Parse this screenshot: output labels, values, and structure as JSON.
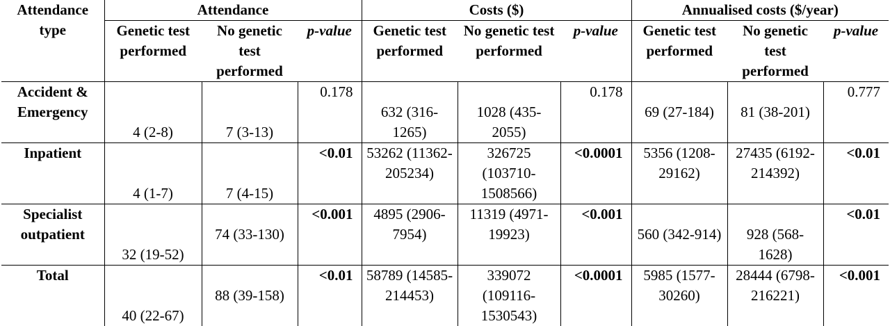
{
  "header": {
    "row_label": "Attendance type",
    "groups": [
      "Attendance",
      "Costs ($)",
      "Annualised costs ($/year)"
    ],
    "subcols": {
      "genetic": "Genetic test performed",
      "no_genetic": "No genetic test performed",
      "p_a": "p-value",
      "p_b": "p-value",
      "p_c": "p-value"
    }
  },
  "rows": [
    {
      "label": "Accident & Emergency",
      "att_g": "4 (2-8)",
      "att_n": "7 (3-13)",
      "att_p": "0.178",
      "cost_g": "632 (316-1265)",
      "cost_n": "1028 (435-2055)",
      "cost_p": "0.178",
      "ann_g": "69 (27-184)",
      "ann_n": "81 (38-201)",
      "ann_p": "0.777"
    },
    {
      "label": "Inpatient",
      "att_g": "4 (1-7)",
      "att_n": "7 (4-15)",
      "att_p": "<0.01",
      "cost_g": "53262 (11362-205234)",
      "cost_n": "326725 (103710-1508566)",
      "cost_p": "<0.0001",
      "ann_g": "5356 (1208-29162)",
      "ann_n": "27435 (6192-214392)",
      "ann_p": "<0.01"
    },
    {
      "label": "Specialist outpatient",
      "att_g": "32 (19-52)",
      "att_n": "74 (33-130)",
      "att_p": "<0.001",
      "cost_g": "4895 (2906-7954)",
      "cost_n": "11319 (4971-19923)",
      "cost_p": "<0.001",
      "ann_g": "560 (342-914)",
      "ann_n": "928 (568-1628)",
      "ann_p": "<0.01"
    },
    {
      "label": "Total",
      "att_g": "40 (22-67)",
      "att_n": "88 (39-158)",
      "att_p": "<0.01",
      "cost_g": "58789 (14585-214453)",
      "cost_n": "339072 (109116-1530543)",
      "cost_p": "<0.0001",
      "ann_g": "5985 (1577-30260)",
      "ann_n": "28444 (6798-216221)",
      "ann_p": "<0.001"
    }
  ]
}
